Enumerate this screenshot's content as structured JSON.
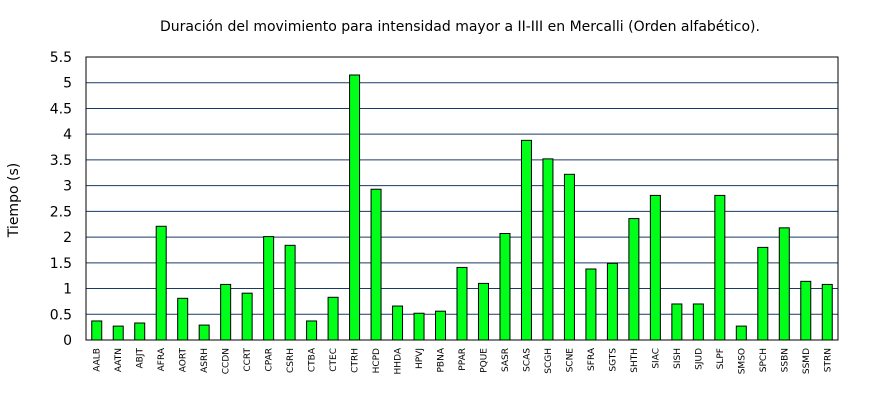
{
  "chart_data": {
    "type": "bar",
    "title": "Duración del movimiento para intensidad mayor a II-III en Mercalli (Orden alfabético).",
    "xlabel": "",
    "ylabel": "Tiempo (s)",
    "ylim": [
      0,
      5.5
    ],
    "yticks": [
      "0",
      "0.5",
      "1",
      "1.5",
      "2",
      "2.5",
      "3",
      "3.5",
      "4",
      "4.5",
      "5",
      "5.5"
    ],
    "grid": true,
    "bar_color": "#00ff19",
    "grid_color": "#1a3a66",
    "categories": [
      "AALB",
      "AATN",
      "ABJT",
      "AFRA",
      "AORT",
      "ASRH",
      "CCDN",
      "CCRT",
      "CPAR",
      "CSRH",
      "CTBA",
      "CTEC",
      "CTRH",
      "HCPD",
      "HHDA",
      "HPVJ",
      "PBNA",
      "PPAR",
      "PQUE",
      "SASR",
      "SCAS",
      "SCGH",
      "SCNE",
      "SFRA",
      "SGTS",
      "SHTH",
      "SIAC",
      "SISH",
      "SJUD",
      "SLPF",
      "SMSO",
      "SPCH",
      "SSBN",
      "SSMD",
      "STRN"
    ],
    "values": [
      0.37,
      0.27,
      0.33,
      2.21,
      0.81,
      0.29,
      1.08,
      0.91,
      2.01,
      1.84,
      0.37,
      0.83,
      5.15,
      2.93,
      0.66,
      0.52,
      0.56,
      1.41,
      1.1,
      2.07,
      3.88,
      3.52,
      3.22,
      1.38,
      1.49,
      2.36,
      2.81,
      0.7,
      0.7,
      2.81,
      0.27,
      1.8,
      2.18,
      1.14,
      1.08
    ]
  }
}
